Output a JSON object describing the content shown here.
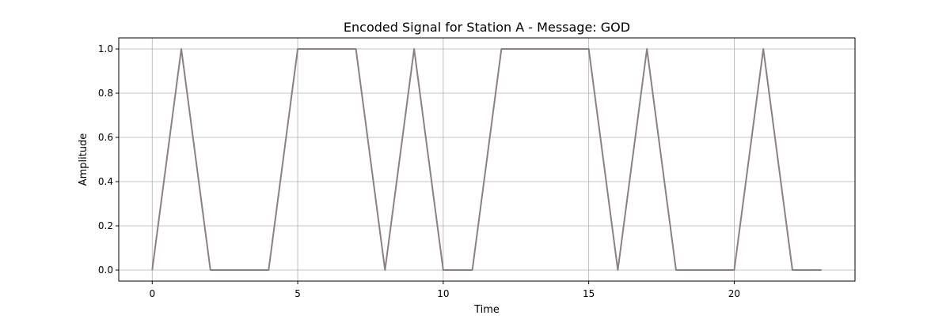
{
  "chart_data": {
    "type": "line",
    "title": "Encoded Signal for Station A - Message: GOD",
    "xlabel": "Time",
    "ylabel": "Amplitude",
    "xlim": [
      -1.15,
      24.15
    ],
    "ylim": [
      -0.05,
      1.05
    ],
    "grid": true,
    "x_ticks": [
      0,
      5,
      10,
      15,
      20
    ],
    "x_tick_labels": [
      "0",
      "5",
      "10",
      "15",
      "20"
    ],
    "y_ticks": [
      0.0,
      0.2,
      0.4,
      0.6,
      0.8,
      1.0
    ],
    "y_tick_labels": [
      "0.0",
      "0.2",
      "0.4",
      "0.6",
      "0.8",
      "1.0"
    ],
    "series": [
      {
        "color": "#8c7f86",
        "x": [
          0,
          1,
          2,
          3,
          4,
          5,
          6,
          7,
          8,
          9,
          10,
          11,
          12,
          13,
          14,
          15,
          16,
          17,
          18,
          19,
          20,
          21,
          22,
          23
        ],
        "y": [
          0,
          1,
          0,
          0,
          0,
          1,
          1,
          1,
          0,
          1,
          0,
          0,
          1,
          1,
          1,
          1,
          0,
          1,
          0,
          0,
          0,
          1,
          0,
          0
        ]
      }
    ]
  }
}
